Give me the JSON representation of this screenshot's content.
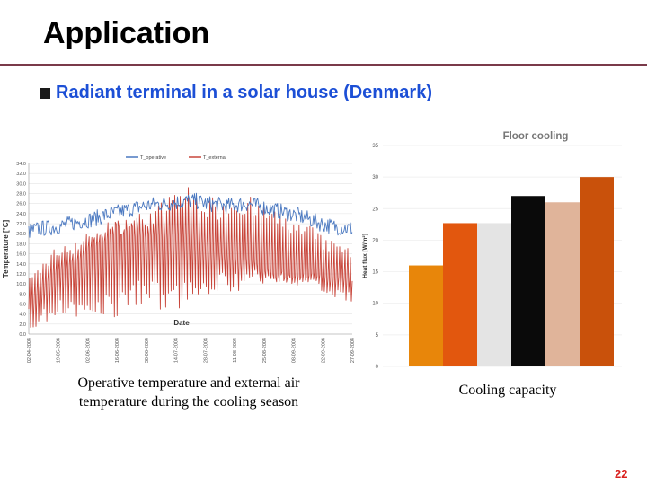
{
  "slide": {
    "title": "Application",
    "bullet": "Radiant terminal in a solar house (Denmark)",
    "caption_left": "Operative temperature and external air temperature during the cooling season",
    "caption_right": "Cooling capacity",
    "page_number": "22"
  },
  "colors": {
    "title_rule": "#7a3a4a",
    "bullet_text": "#1c4fd6",
    "page_number": "#d9201e"
  },
  "chart_data": [
    {
      "type": "line",
      "title": "",
      "xlabel": "Date",
      "ylabel": "Temperature [°C]",
      "ylim": [
        0,
        34
      ],
      "y_ticks": [
        "0.0",
        "2.0",
        "4.0",
        "6.0",
        "8.0",
        "10.0",
        "12.0",
        "14.0",
        "16.0",
        "18.0",
        "20.0",
        "22.0",
        "24.0",
        "26.0",
        "28.0",
        "30.0",
        "32.0",
        "34.0"
      ],
      "x_ticks": [
        "02-04-2004",
        "19-05-2004",
        "02-06-2004",
        "16-06-2004",
        "30-06-2004",
        "14-07-2004",
        "28-07-2004",
        "11-08-2004",
        "25-08-2004",
        "08-09-2004",
        "22-09-2004",
        "27-09-2004"
      ],
      "legend": [
        "T_operative",
        "T_external"
      ],
      "legend_position": "top",
      "grid": true,
      "series": [
        {
          "name": "T_operative",
          "color": "#4a78c0",
          "values": [
            20.5,
            21,
            21.2,
            21.5,
            22,
            22.5,
            22.8,
            23.5,
            24,
            24.5,
            25,
            25.5,
            25.8,
            26,
            26.2,
            26.5,
            26.5,
            26,
            25.8,
            25.5,
            25.8,
            26,
            25.5,
            25,
            24.5,
            24,
            23.5,
            22.8,
            22,
            21.5,
            21.2,
            21
          ]
        },
        {
          "name": "T_external",
          "color": "#c8453a",
          "values": [
            5,
            8,
            10,
            12,
            12,
            13,
            14,
            15,
            16,
            16,
            17,
            17,
            17,
            17,
            18,
            18,
            18,
            17,
            17,
            17,
            17,
            17,
            16,
            16,
            15,
            15,
            14,
            14,
            13,
            12,
            12,
            11
          ],
          "amplitude": [
            7,
            7,
            8,
            8,
            9,
            10,
            11,
            12,
            13,
            13,
            12,
            11,
            12,
            13,
            14,
            14,
            13,
            12,
            11,
            11,
            12,
            11,
            10,
            10,
            9,
            9,
            8,
            8,
            7,
            7,
            7,
            6
          ]
        }
      ]
    },
    {
      "type": "bar",
      "title": "Floor cooling",
      "ylabel": "Heat flux [W/m²]",
      "ylim": [
        0,
        35
      ],
      "y_ticks": [
        "0",
        "5",
        "10",
        "15",
        "20",
        "25",
        "30",
        "35"
      ],
      "grid": true,
      "values": [
        16,
        22.7,
        22.7,
        27,
        26,
        30
      ],
      "bar_colors": [
        "#e8860a",
        "#e2570e",
        "#e4e4e4",
        "#0a0a0a",
        "#e0b49a",
        "#c9510b"
      ]
    }
  ]
}
